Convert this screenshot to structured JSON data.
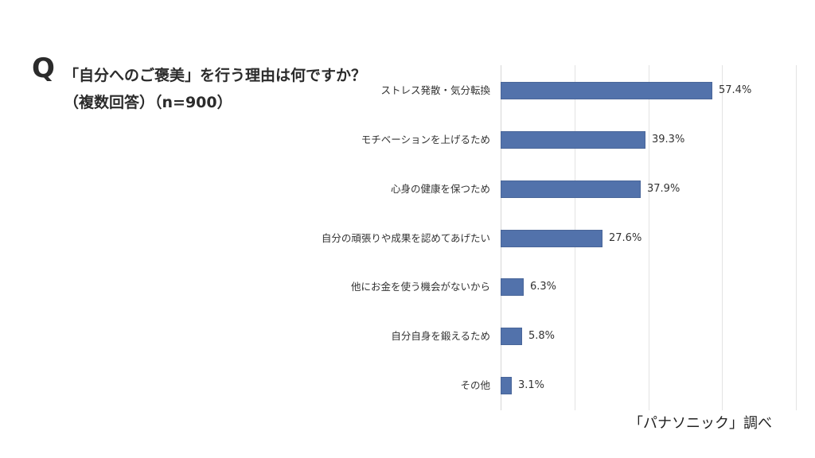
{
  "header": {
    "q_mark": "Q",
    "question_line1": "「自分へのご褒美」を行う理由は何ですか？",
    "question_line2": "（複数回答）（n=900）"
  },
  "source": "「パナソニック」調べ",
  "colors": {
    "bar": "#5272ab",
    "gridline": "#e3e3e3",
    "text": "#222222"
  },
  "chart_data": {
    "type": "bar",
    "orientation": "horizontal",
    "title": "「自分へのご褒美」を行う理由は何ですか？（複数回答）（n=900）",
    "xlabel": "",
    "ylabel": "",
    "xlim": [
      0,
      80
    ],
    "gridlines_x": [
      0,
      20,
      40,
      60,
      80
    ],
    "grid": true,
    "legend": null,
    "unit": "%",
    "categories": [
      "ストレス発散・気分転換",
      "モチベーションを上げるため",
      "心身の健康を保つため",
      "自分の頑張りや成果を認めてあげたい",
      "他にお金を使う機会がないから",
      "自分自身を鍛えるため",
      "その他"
    ],
    "values": [
      57.4,
      39.3,
      37.9,
      27.6,
      6.3,
      5.8,
      3.1
    ],
    "value_labels": [
      "57.4%",
      "39.3%",
      "37.9%",
      "27.6%",
      "6.3%",
      "5.8%",
      "3.1%"
    ]
  }
}
